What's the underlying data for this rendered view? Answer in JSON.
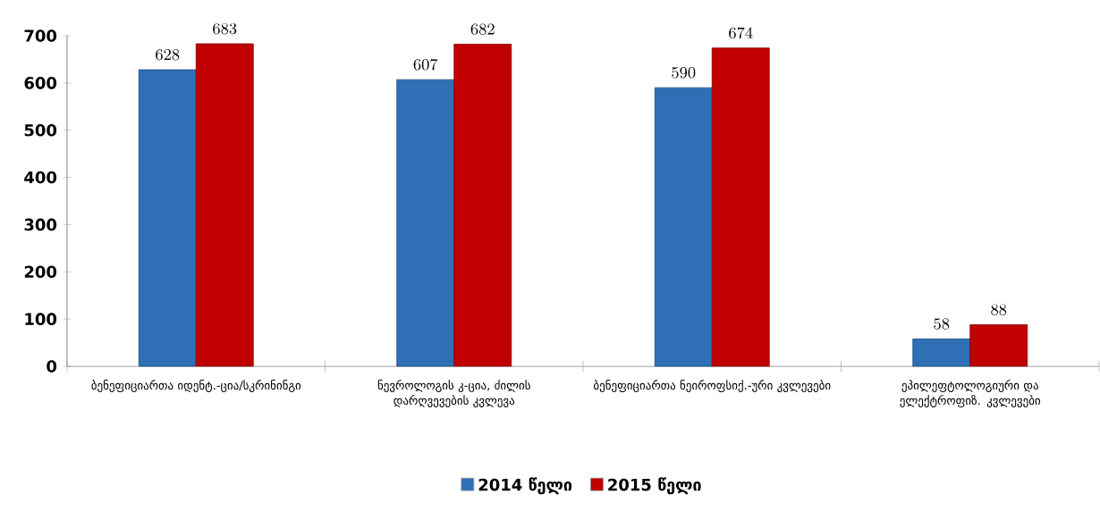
{
  "chart_data": {
    "type": "bar",
    "categories": [
      "ბენეფიციართა იდენტ.-ცია/სკრინინგი",
      "ნევროლოგის კ-ცია, ძილის დარღვევების კვლევა",
      "ბენეფიციართა ნეიროფსიქ.-ური კვლევები",
      "ეპილეფტოლოგიური და ელექტროფიზ. კვლევები"
    ],
    "series": [
      {
        "name": "2014 წელი",
        "color": "#2f6fb5",
        "values": [
          628,
          607,
          590,
          58
        ]
      },
      {
        "name": "2015 წელი",
        "color": "#c00000",
        "values": [
          683,
          682,
          674,
          88
        ]
      }
    ],
    "ylim": [
      0,
      700
    ],
    "yticks": [
      0,
      100,
      200,
      300,
      400,
      500,
      600,
      700
    ],
    "data_labels": true,
    "legend": "bottom"
  }
}
